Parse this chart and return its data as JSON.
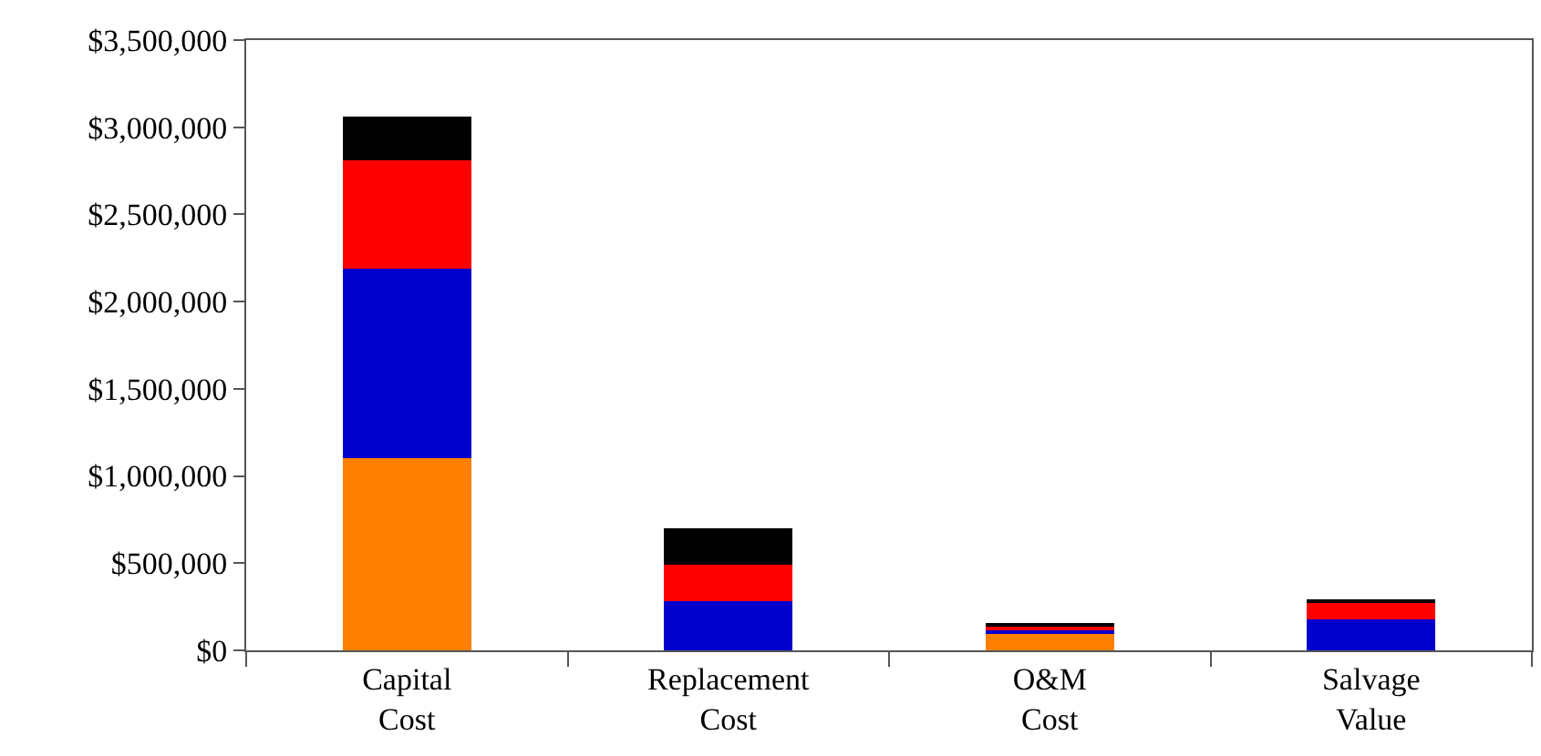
{
  "chart_data": {
    "type": "bar",
    "stacked": true,
    "categories": [
      "Capital Cost",
      "Replacement Cost",
      "O&M Cost",
      "Salvage Value"
    ],
    "series": [
      {
        "color": "#ff8000",
        "values": [
          1100000,
          0,
          100000,
          0
        ]
      },
      {
        "color": "#0000cc",
        "values": [
          1090000,
          280000,
          20000,
          180000
        ]
      },
      {
        "color": "#ff0000",
        "values": [
          620000,
          210000,
          20000,
          100000
        ]
      },
      {
        "color": "#000000",
        "values": [
          250000,
          210000,
          10000,
          10000
        ]
      }
    ],
    "ylim": [
      0,
      3500000
    ],
    "yticks": [
      {
        "value": 0,
        "label": "$0"
      },
      {
        "value": 500000,
        "label": "$500,000"
      },
      {
        "value": 1000000,
        "label": "$1,000,000"
      },
      {
        "value": 1500000,
        "label": "$1,500,000"
      },
      {
        "value": 2000000,
        "label": "$2,000,000"
      },
      {
        "value": 2500000,
        "label": "$2,500,000"
      },
      {
        "value": 3000000,
        "label": "$3,000,000"
      },
      {
        "value": 3500000,
        "label": "$3,500,000"
      }
    ],
    "grid": false
  }
}
